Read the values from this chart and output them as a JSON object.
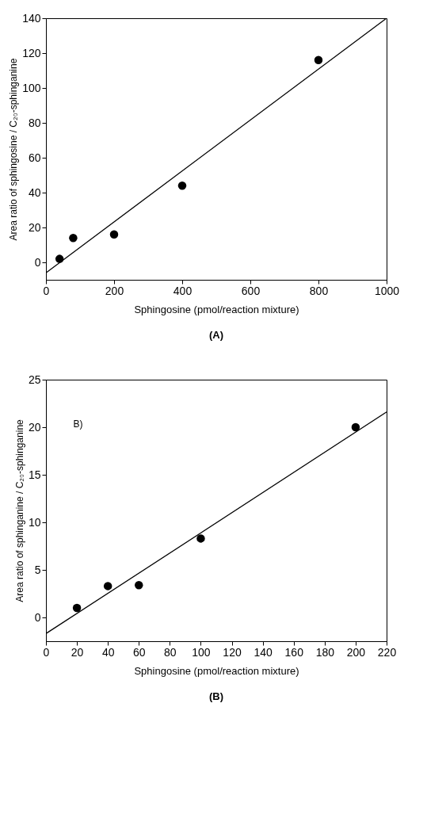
{
  "chart_data": [
    {
      "type": "scatter",
      "xlabel": "Sphingosine (pmol/reaction mixture)",
      "ylabel": "Area ratio of sphingosine / C₂₀-sphinganine",
      "xlim": [
        0,
        1000
      ],
      "ylim": [
        -10,
        140
      ],
      "xticks": [
        0,
        200,
        400,
        600,
        800,
        1000
      ],
      "yticks": [
        0,
        20,
        40,
        60,
        80,
        100,
        120,
        140
      ],
      "grid": false,
      "annotations": [
        "(A)"
      ],
      "series": [
        {
          "color": "#000000",
          "marker": "circle",
          "x": [
            40,
            80,
            200,
            400,
            800
          ],
          "values": [
            2,
            14,
            16,
            44,
            116
          ]
        },
        {
          "type": "line",
          "color": "#000000",
          "x": [
            0,
            1000
          ],
          "values": [
            -6,
            140
          ]
        }
      ]
    },
    {
      "type": "scatter",
      "xlabel": "Sphingosine (pmol/reaction mixture)",
      "ylabel": "Area ratio of sphinganine / C₂₀-sphinganine",
      "xlim": [
        0,
        220
      ],
      "ylim": [
        -2.5,
        25
      ],
      "xticks": [
        0,
        20,
        40,
        60,
        80,
        100,
        120,
        140,
        160,
        180,
        200,
        220
      ],
      "yticks": [
        0,
        5,
        10,
        15,
        20,
        25
      ],
      "grid": false,
      "annotations": [
        "B)",
        "(B)"
      ],
      "series": [
        {
          "color": "#000000",
          "marker": "circle",
          "x": [
            20,
            40,
            60,
            100,
            200
          ],
          "values": [
            1,
            3.3,
            3.4,
            8.3,
            20
          ]
        },
        {
          "type": "line",
          "color": "#000000",
          "x": [
            0,
            220
          ],
          "values": [
            -1.7,
            21.6
          ]
        }
      ]
    }
  ]
}
